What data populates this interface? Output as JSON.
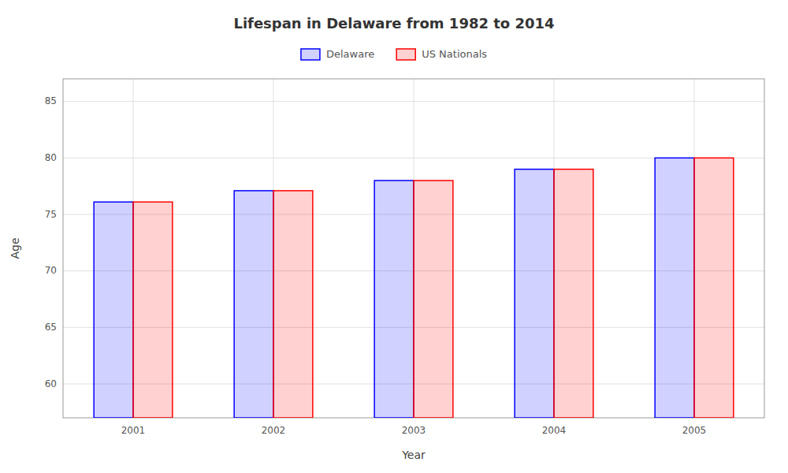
{
  "chart_data": {
    "type": "bar",
    "title": "Lifespan in Delaware from 1982 to 2014",
    "x_label": "Year",
    "y_label": "Age",
    "categories": [
      "2001",
      "2002",
      "2003",
      "2004",
      "2005"
    ],
    "series": [
      {
        "name": "Delaware",
        "color": "#0000ff",
        "values": [
          76.1,
          77.1,
          78.0,
          79.0,
          80.0
        ]
      },
      {
        "name": "US Nationals",
        "color": "#ff0000",
        "values": [
          76.1,
          77.1,
          78.0,
          79.0,
          80.0
        ]
      }
    ],
    "ylim": [
      57,
      87
    ],
    "yticks": [
      60,
      65,
      70,
      75,
      80,
      85
    ],
    "grid": true,
    "legend": "top"
  }
}
